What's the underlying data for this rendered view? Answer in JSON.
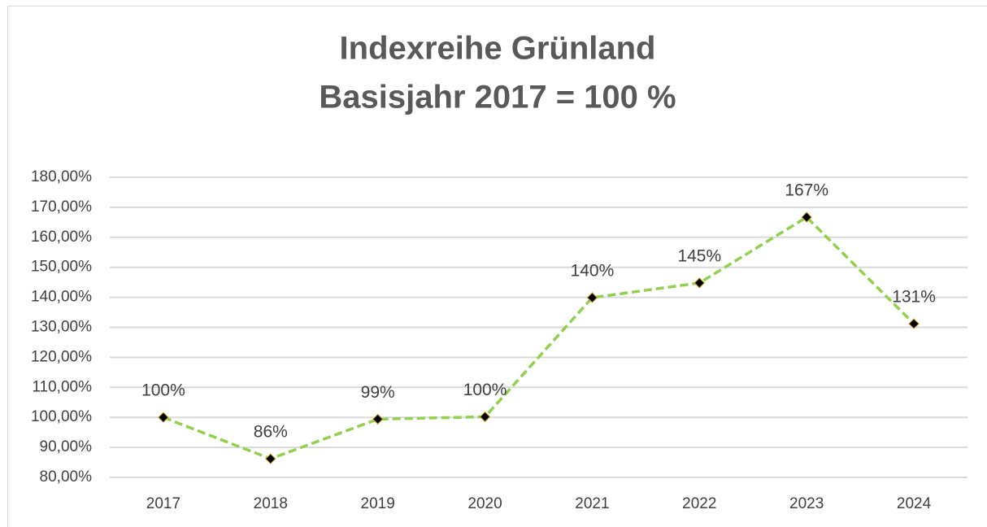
{
  "chart_data": {
    "type": "line",
    "title": [
      "Indexreihe Grünland",
      "Basisjahr 2017 = 100 %"
    ],
    "categories": [
      "2017",
      "2018",
      "2019",
      "2020",
      "2021",
      "2022",
      "2023",
      "2024"
    ],
    "series": [
      {
        "name": "Grünland",
        "color": "#92d050",
        "values": [
          100.0,
          86.2,
          99.4,
          100.2,
          139.9,
          144.8,
          166.7,
          131.2
        ],
        "value_labels": [
          "100%",
          "86%",
          "99%",
          "100%",
          "140%",
          "145%",
          "167%",
          "131%"
        ]
      }
    ],
    "ylim": [
      80,
      180
    ],
    "yticks": [
      {
        "value": 80,
        "label": "80,00%"
      },
      {
        "value": 90,
        "label": "90,00%"
      },
      {
        "value": 100,
        "label": "100,00%"
      },
      {
        "value": 110,
        "label": "110,00%"
      },
      {
        "value": 120,
        "label": "120,00%"
      },
      {
        "value": 130,
        "label": "130,00%"
      },
      {
        "value": 140,
        "label": "140,00%"
      },
      {
        "value": 150,
        "label": "150,00%"
      },
      {
        "value": 160,
        "label": "160,00%"
      },
      {
        "value": 170,
        "label": "170,00%"
      },
      {
        "value": 180,
        "label": "180,00%"
      }
    ],
    "grid": true
  }
}
